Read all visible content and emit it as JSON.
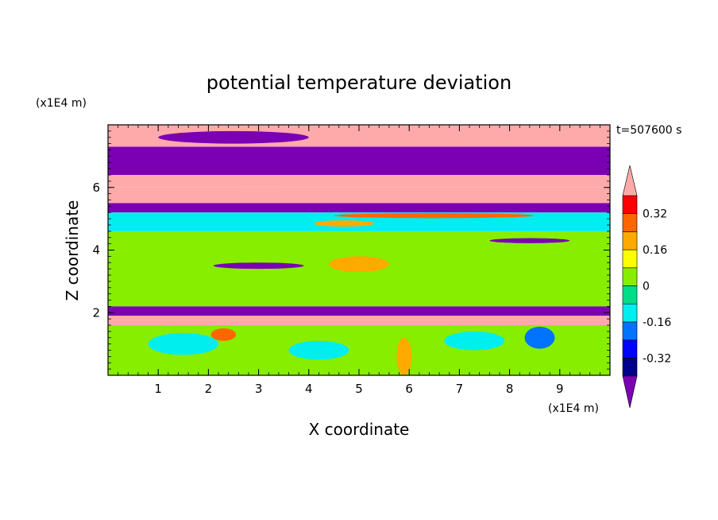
{
  "chart_data": {
    "type": "heatmap",
    "title": "potential temperature deviation",
    "xlabel": "X coordinate",
    "ylabel": "Z coordinate",
    "x_unit": "(x1E4 m)",
    "y_unit": "(x1E4 m)",
    "time_label": "t=507600 s",
    "xlim": [
      0,
      10
    ],
    "ylim": [
      0,
      8
    ],
    "x_ticks": [
      "1",
      "2",
      "3",
      "4",
      "5",
      "6",
      "7",
      "8",
      "9"
    ],
    "y_ticks": [
      "2",
      "4",
      "6"
    ],
    "colorbar": {
      "levels": [
        -0.4,
        -0.32,
        -0.24,
        -0.16,
        -0.08,
        0,
        0.08,
        0.16,
        0.24,
        0.32,
        0.4
      ],
      "colors": [
        "#7b00b4",
        "#00008c",
        "#0000ff",
        "#0073ff",
        "#00eeee",
        "#00dd88",
        "#87ee00",
        "#ffff00",
        "#ffaa00",
        "#ff6600",
        "#ff0000",
        "#ffaaaa"
      ],
      "tick_labels": [
        "0.32",
        "0.16",
        "0",
        "-0.16",
        "-0.32"
      ],
      "tick_values": [
        0.32,
        0.16,
        0,
        -0.16,
        -0.32
      ],
      "extend": "both"
    },
    "bands": [
      {
        "z": [
          7.3,
          8.0
        ],
        "value": 0.45
      },
      {
        "z": [
          6.4,
          7.3
        ],
        "value": -0.45
      },
      {
        "z": [
          6.0,
          6.4
        ],
        "value": 0.45
      },
      {
        "z": [
          5.5,
          6.0
        ],
        "value": 0.45
      },
      {
        "z": [
          5.2,
          5.5
        ],
        "value": -0.45
      },
      {
        "z": [
          4.6,
          5.2
        ],
        "value": -0.1
      },
      {
        "z": [
          2.2,
          4.6
        ],
        "value": 0.02
      },
      {
        "z": [
          1.9,
          2.2
        ],
        "value": -0.45
      },
      {
        "z": [
          1.6,
          1.9
        ],
        "value": 0.45
      },
      {
        "z": [
          0.0,
          1.6
        ],
        "value": 0.05
      }
    ]
  }
}
